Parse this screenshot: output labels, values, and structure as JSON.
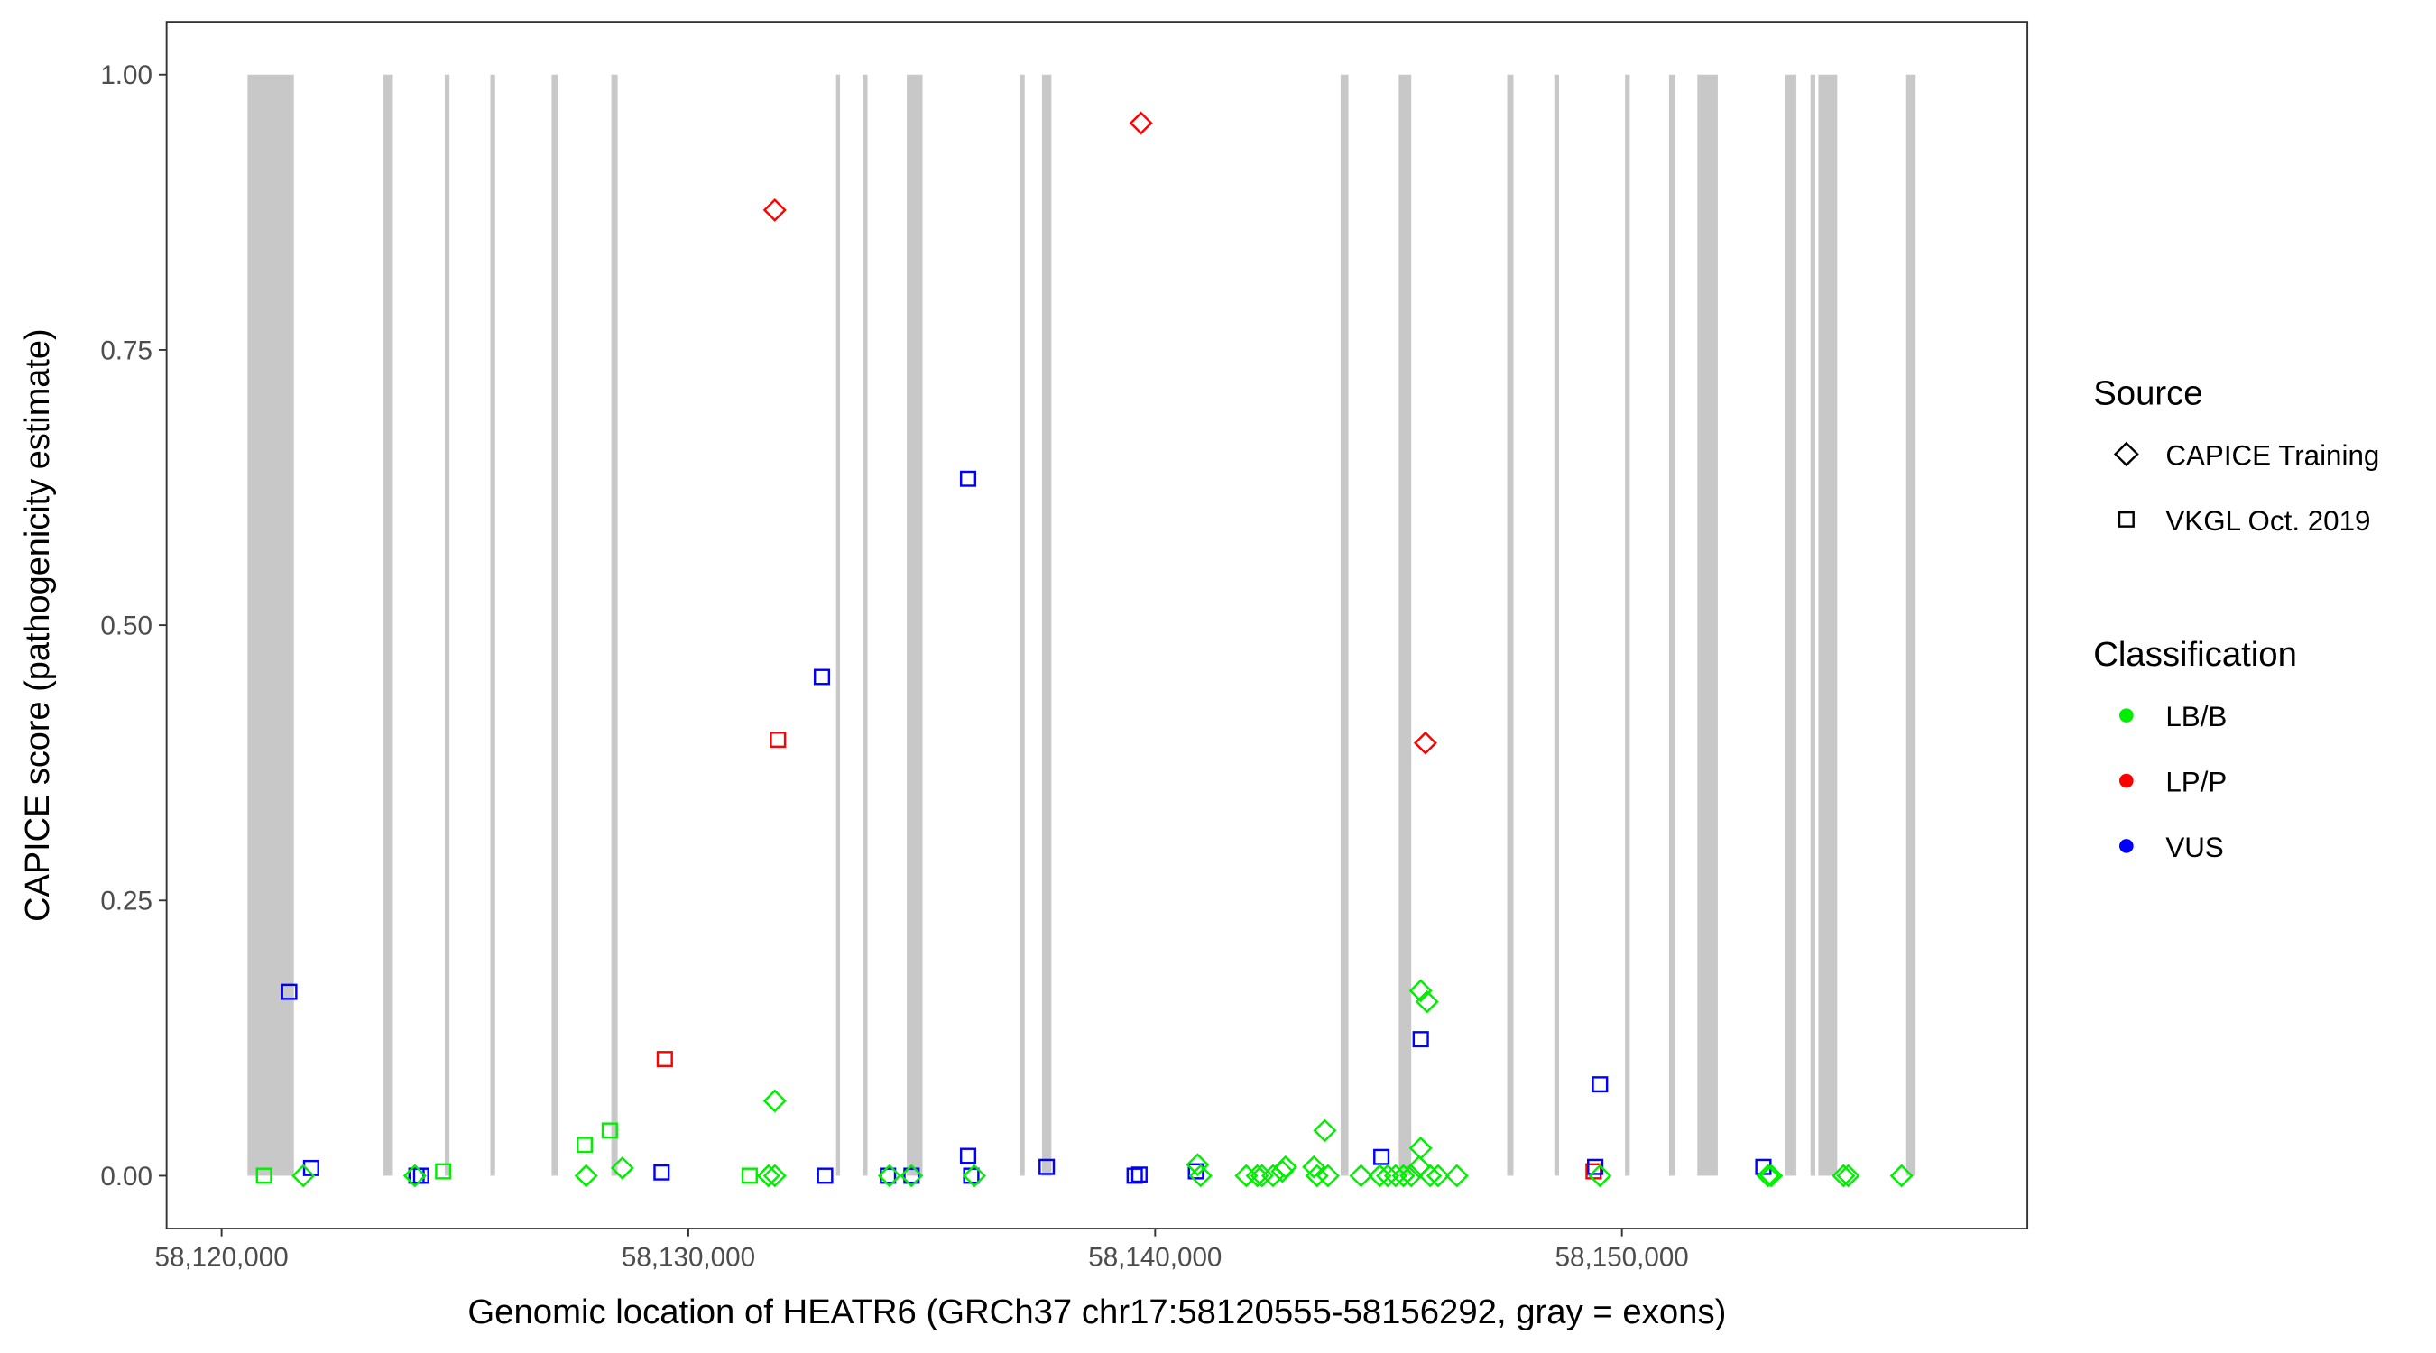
{
  "chart_data": {
    "type": "scatter",
    "xlabel": "Genomic location of HEATR6 (GRCh37 chr17:58120555-58156292, gray = exons)",
    "ylabel": "CAPICE score (pathogenicity estimate)",
    "xlim": [
      58118800,
      58157700
    ],
    "ylim": [
      -0.047,
      1.047
    ],
    "x_ticks": [
      58120000,
      58130000,
      58140000,
      58150000
    ],
    "x_tick_labels": [
      "58,120,000",
      "58,130,000",
      "58,140,000",
      "58,150,000"
    ],
    "y_ticks": [
      0,
      0.25,
      0.5,
      0.75,
      1.0
    ],
    "y_tick_labels": [
      "0.00",
      "0.25",
      "0.50",
      "0.75",
      "1.00"
    ],
    "grid": false,
    "exons": [
      [
        58120555,
        58121549
      ],
      [
        58123468,
        58123670
      ],
      [
        58124781,
        58124882
      ],
      [
        58125758,
        58125859
      ],
      [
        58127071,
        58127205
      ],
      [
        58128350,
        58128485
      ],
      [
        58133165,
        58133232
      ],
      [
        58133737,
        58133838
      ],
      [
        58134680,
        58135017
      ],
      [
        58137104,
        58137205
      ],
      [
        58137576,
        58137778
      ],
      [
        58143973,
        58144141
      ],
      [
        58145219,
        58145488
      ],
      [
        58147542,
        58147677
      ],
      [
        58148552,
        58148653
      ],
      [
        58150067,
        58150168
      ],
      [
        58151010,
        58151145
      ],
      [
        58151616,
        58152054
      ],
      [
        58153502,
        58153737
      ],
      [
        58154041,
        58154142
      ],
      [
        58154209,
        58154613
      ],
      [
        58156090,
        58156292
      ]
    ],
    "legend": {
      "placement": "right",
      "source_title": "Source",
      "source_items": [
        {
          "label": "CAPICE Training",
          "shape": "diamond"
        },
        {
          "label": "VKGL Oct. 2019",
          "shape": "square"
        }
      ],
      "class_title": "Classification",
      "class_items": [
        {
          "label": "LB/B",
          "color": "#00ee00"
        },
        {
          "label": "LP/P",
          "color": "#ff0000"
        },
        {
          "label": "VUS",
          "color": "#0000ff"
        }
      ]
    },
    "points": [
      {
        "x": 58120909,
        "y": 0,
        "s": "square",
        "c": "LB/B"
      },
      {
        "x": 58121448,
        "y": 0.167,
        "s": "square",
        "c": "VUS"
      },
      {
        "x": 58121919,
        "y": 0.007,
        "s": "square",
        "c": "VUS"
      },
      {
        "x": 58124175,
        "y": 0,
        "s": "square",
        "c": "VUS"
      },
      {
        "x": 58124276,
        "y": 0,
        "s": "square",
        "c": "VUS"
      },
      {
        "x": 58124748,
        "y": 0.004,
        "s": "square",
        "c": "LB/B"
      },
      {
        "x": 58127778,
        "y": 0.028,
        "s": "square",
        "c": "LB/B"
      },
      {
        "x": 58128316,
        "y": 0.041,
        "s": "square",
        "c": "LB/B"
      },
      {
        "x": 58129427,
        "y": 0.003,
        "s": "square",
        "c": "VUS"
      },
      {
        "x": 58129495,
        "y": 0.106,
        "s": "square",
        "c": "LP/P"
      },
      {
        "x": 58131313,
        "y": 0,
        "s": "square",
        "c": "LB/B"
      },
      {
        "x": 58131919,
        "y": 0.396,
        "s": "square",
        "c": "LP/P"
      },
      {
        "x": 58132862,
        "y": 0.453,
        "s": "square",
        "c": "VUS"
      },
      {
        "x": 58132929,
        "y": 0,
        "s": "square",
        "c": "VUS"
      },
      {
        "x": 58134276,
        "y": 0,
        "s": "square",
        "c": "VUS"
      },
      {
        "x": 58134781,
        "y": 0,
        "s": "square",
        "c": "VUS"
      },
      {
        "x": 58135993,
        "y": 0.018,
        "s": "square",
        "c": "VUS"
      },
      {
        "x": 58135993,
        "y": 0.633,
        "s": "square",
        "c": "VUS"
      },
      {
        "x": 58136061,
        "y": 0,
        "s": "square",
        "c": "VUS"
      },
      {
        "x": 58137677,
        "y": 0.008,
        "s": "square",
        "c": "VUS"
      },
      {
        "x": 58139562,
        "y": 0,
        "s": "square",
        "c": "VUS"
      },
      {
        "x": 58139663,
        "y": 0.001,
        "s": "square",
        "c": "VUS"
      },
      {
        "x": 58140875,
        "y": 0.004,
        "s": "square",
        "c": "VUS"
      },
      {
        "x": 58144848,
        "y": 0.017,
        "s": "square",
        "c": "VUS"
      },
      {
        "x": 58145690,
        "y": 0.124,
        "s": "square",
        "c": "VUS"
      },
      {
        "x": 58149394,
        "y": 0.004,
        "s": "square",
        "c": "LP/P"
      },
      {
        "x": 58149428,
        "y": 0.008,
        "s": "square",
        "c": "VUS"
      },
      {
        "x": 58149529,
        "y": 0.083,
        "s": "square",
        "c": "VUS"
      },
      {
        "x": 58153031,
        "y": 0.008,
        "s": "square",
        "c": "VUS"
      },
      {
        "x": 58121751,
        "y": 0,
        "s": "diamond",
        "c": "LB/B"
      },
      {
        "x": 58124141,
        "y": 0,
        "s": "diamond",
        "c": "LB/B"
      },
      {
        "x": 58127811,
        "y": 0,
        "s": "diamond",
        "c": "LB/B"
      },
      {
        "x": 58128586,
        "y": 0.007,
        "s": "diamond",
        "c": "LB/B"
      },
      {
        "x": 58131717,
        "y": 0,
        "s": "diamond",
        "c": "LB/B"
      },
      {
        "x": 58131852,
        "y": 0,
        "s": "diamond",
        "c": "LB/B"
      },
      {
        "x": 58131852,
        "y": 0.068,
        "s": "diamond",
        "c": "LB/B"
      },
      {
        "x": 58131852,
        "y": 0.877,
        "s": "diamond",
        "c": "LP/P"
      },
      {
        "x": 58134310,
        "y": 0,
        "s": "diamond",
        "c": "LB/B"
      },
      {
        "x": 58134781,
        "y": 0,
        "s": "diamond",
        "c": "LB/B"
      },
      {
        "x": 58136128,
        "y": 0,
        "s": "diamond",
        "c": "LB/B"
      },
      {
        "x": 58139697,
        "y": 0.956,
        "s": "diamond",
        "c": "LP/P"
      },
      {
        "x": 58140909,
        "y": 0.01,
        "s": "diamond",
        "c": "LB/B"
      },
      {
        "x": 58140976,
        "y": 0,
        "s": "diamond",
        "c": "LB/B"
      },
      {
        "x": 58141953,
        "y": 0,
        "s": "diamond",
        "c": "LB/B"
      },
      {
        "x": 58142189,
        "y": 0,
        "s": "diamond",
        "c": "LB/B"
      },
      {
        "x": 58142290,
        "y": 0,
        "s": "diamond",
        "c": "LB/B"
      },
      {
        "x": 58142525,
        "y": 0,
        "s": "diamond",
        "c": "LB/B"
      },
      {
        "x": 58142727,
        "y": 0.004,
        "s": "diamond",
        "c": "LB/B"
      },
      {
        "x": 58142795,
        "y": 0.008,
        "s": "diamond",
        "c": "LB/B"
      },
      {
        "x": 58143401,
        "y": 0.008,
        "s": "diamond",
        "c": "LB/B"
      },
      {
        "x": 58143468,
        "y": 0,
        "s": "diamond",
        "c": "LB/B"
      },
      {
        "x": 58143636,
        "y": 0.041,
        "s": "diamond",
        "c": "LB/B"
      },
      {
        "x": 58143704,
        "y": 0,
        "s": "diamond",
        "c": "LB/B"
      },
      {
        "x": 58144411,
        "y": 0,
        "s": "diamond",
        "c": "LB/B"
      },
      {
        "x": 58144815,
        "y": 0,
        "s": "diamond",
        "c": "LB/B"
      },
      {
        "x": 58144983,
        "y": 0,
        "s": "diamond",
        "c": "LB/B"
      },
      {
        "x": 58145152,
        "y": 0,
        "s": "diamond",
        "c": "LB/B"
      },
      {
        "x": 58145320,
        "y": 0,
        "s": "diamond",
        "c": "LB/B"
      },
      {
        "x": 58145488,
        "y": 0,
        "s": "diamond",
        "c": "LB/B"
      },
      {
        "x": 58145657,
        "y": 0.008,
        "s": "diamond",
        "c": "LB/B"
      },
      {
        "x": 58145892,
        "y": 0,
        "s": "diamond",
        "c": "LB/B"
      },
      {
        "x": 58146061,
        "y": 0,
        "s": "diamond",
        "c": "LB/B"
      },
      {
        "x": 58145690,
        "y": 0.025,
        "s": "diamond",
        "c": "LB/B"
      },
      {
        "x": 58145690,
        "y": 0.168,
        "s": "diamond",
        "c": "LB/B"
      },
      {
        "x": 58145825,
        "y": 0.158,
        "s": "diamond",
        "c": "LB/B"
      },
      {
        "x": 58145791,
        "y": 0.393,
        "s": "diamond",
        "c": "LP/P"
      },
      {
        "x": 58146465,
        "y": 0,
        "s": "diamond",
        "c": "LB/B"
      },
      {
        "x": 58149529,
        "y": 0,
        "s": "diamond",
        "c": "LB/B"
      },
      {
        "x": 58153131,
        "y": 0,
        "s": "diamond",
        "c": "LB/B"
      },
      {
        "x": 58153199,
        "y": 0,
        "s": "diamond",
        "c": "LB/B"
      },
      {
        "x": 58154748,
        "y": 0,
        "s": "diamond",
        "c": "LB/B"
      },
      {
        "x": 58154849,
        "y": 0,
        "s": "diamond",
        "c": "LB/B"
      },
      {
        "x": 58155993,
        "y": 0,
        "s": "diamond",
        "c": "LB/B"
      }
    ]
  }
}
